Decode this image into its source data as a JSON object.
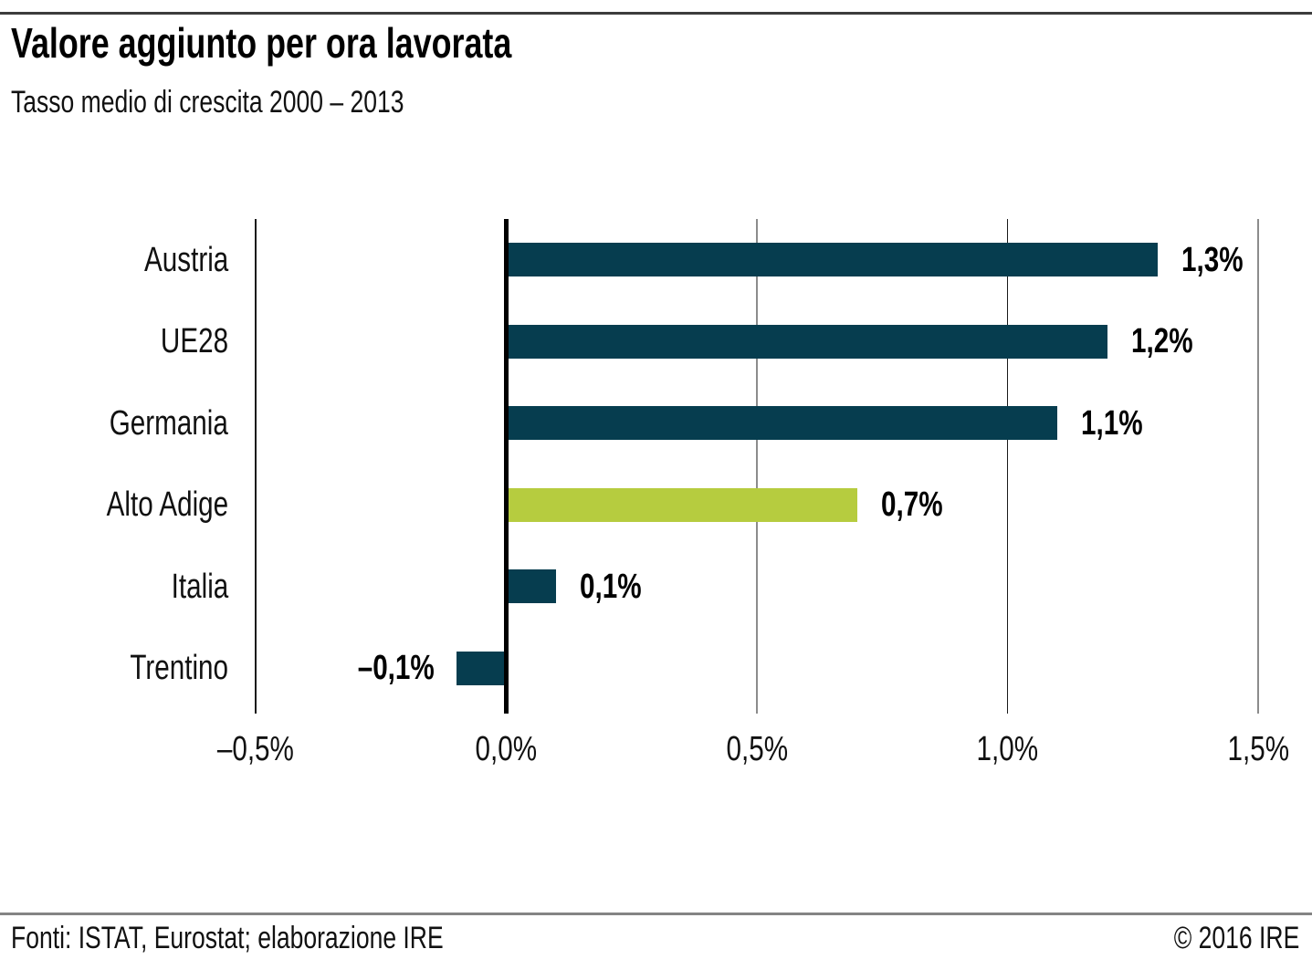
{
  "header": {
    "title": "Valore aggiunto per ora lavorata",
    "subtitle": "Tasso medio di crescita 2000 – 2013"
  },
  "footer": {
    "sources": "Fonti: ISTAT, Eurostat; elaborazione IRE",
    "copyright": "© 2016 IRE"
  },
  "colors": {
    "bar_default": "#063d4f",
    "bar_highlight": "#b6cc3f",
    "zero_line": "#000000",
    "gridline_dark": "#1a1a1a",
    "gridline_gray": "#8c8c8c"
  },
  "chart_data": {
    "type": "bar",
    "orientation": "horizontal",
    "title": "Valore aggiunto per ora lavorata",
    "subtitle": "Tasso medio di crescita 2000 – 2013",
    "categories": [
      "Austria",
      "UE28",
      "Germania",
      "Alto Adige",
      "Italia",
      "Trentino"
    ],
    "values": [
      1.3,
      1.2,
      1.1,
      0.7,
      0.1,
      -0.1
    ],
    "value_labels": [
      "1,3%",
      "1,2%",
      "1,1%",
      "0,7%",
      "0,1%",
      "–0,1%"
    ],
    "highlight_index": 3,
    "highlighted_category": "Alto Adige",
    "xlim": [
      -0.5,
      1.5
    ],
    "x_ticks": [
      -0.5,
      0.0,
      0.5,
      1.0,
      1.5
    ],
    "x_tick_labels": [
      "–0,5%",
      "0,0%",
      "0,5%",
      "1,0%",
      "1,5%"
    ],
    "grid": "vertical",
    "legend": "none",
    "unit": "percent"
  }
}
